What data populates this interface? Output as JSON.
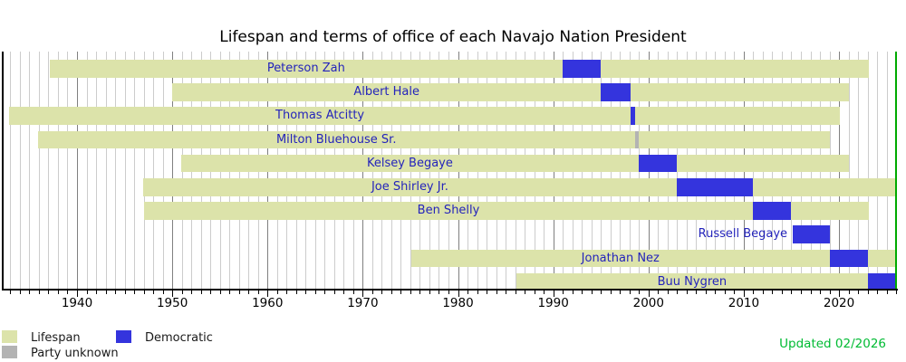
{
  "chart_data": {
    "type": "timeline",
    "title": "Lifespan and terms of office of each Navajo Nation President",
    "updated": "Updated 02/2026",
    "xlim": [
      1932.2,
      2026.2
    ],
    "now_year": 2026.0,
    "grid": "vertical, 1-year minor lines, darker decade lines",
    "decade_tick_labels": [
      "1940",
      "1950",
      "1960",
      "1970",
      "1980",
      "1990",
      "2000",
      "2010",
      "2020"
    ],
    "decade_tick_years": [
      1940,
      1950,
      1960,
      1970,
      1980,
      1990,
      2000,
      2010,
      2020
    ],
    "rows": [
      {
        "name": "Peterson Zah",
        "lifespan": [
          1937.1,
          2023.1
        ],
        "term": [
          1991.0,
          1995.0
        ],
        "party": "democratic"
      },
      {
        "name": "Albert Hale",
        "lifespan": [
          1950.0,
          2021.0
        ],
        "term": [
          1995.0,
          1998.1
        ],
        "party": "democratic"
      },
      {
        "name": "Thomas Atcitty",
        "lifespan": [
          1932.9,
          2020.1
        ],
        "term": [
          1998.1,
          1998.55
        ],
        "party": "democratic"
      },
      {
        "name": "Milton Bluehouse Sr.",
        "lifespan": [
          1935.9,
          2019.0
        ],
        "term": [
          1998.55,
          1999.0
        ],
        "party": "unknown"
      },
      {
        "name": "Kelsey Begaye",
        "lifespan": [
          1950.9,
          2021.0
        ],
        "term": [
          1999.0,
          2003.0
        ],
        "party": "democratic"
      },
      {
        "name": "Joe Shirley Jr.",
        "lifespan": [
          1946.9,
          2026.0
        ],
        "term": [
          2003.0,
          2011.0
        ],
        "party": "democratic"
      },
      {
        "name": "Ben Shelly",
        "lifespan": [
          1947.0,
          2023.1
        ],
        "term": [
          2011.0,
          2015.0
        ],
        "party": "democratic"
      },
      {
        "name": "Russell Begaye",
        "lifespan": null,
        "term": [
          2015.15,
          2019.0
        ],
        "party": "democratic"
      },
      {
        "name": "Jonathan Nez",
        "lifespan": [
          1975.1,
          2026.0
        ],
        "term": [
          2019.0,
          2023.0
        ],
        "party": "democratic"
      },
      {
        "name": "Buu Nygren",
        "lifespan": [
          1986.1,
          2026.0
        ],
        "term": [
          2023.05,
          2026.0
        ],
        "party": "democratic"
      }
    ],
    "legend": [
      {
        "label": "Lifespan",
        "key": "lifespan"
      },
      {
        "label": "Democratic",
        "key": "democratic"
      },
      {
        "label": "Party unknown",
        "key": "unknown"
      }
    ],
    "colors": {
      "lifespan": "#dce3aa",
      "democratic": "#3434dd",
      "unknown": "#b3b3b3",
      "now_line": "#00aa00",
      "updated_text": "#00bb33",
      "name_text": "#2424bb",
      "grid_year": "#cccccc",
      "grid_decade": "#808080"
    }
  }
}
